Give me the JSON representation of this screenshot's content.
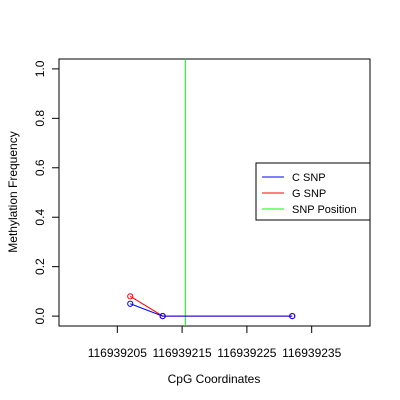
{
  "chart_data": {
    "type": "line",
    "title": "",
    "xlabel": "CpG Coordinates",
    "ylabel": "Methylation Frequency",
    "xlim": [
      116939196,
      116939244
    ],
    "ylim": [
      -0.04,
      1.04
    ],
    "x_ticks": [
      116939205,
      116939215,
      116939225,
      116939235
    ],
    "x_tick_labels": [
      "116939205",
      "116939215",
      "116939225",
      "116939235"
    ],
    "y_ticks": [
      0.0,
      0.2,
      0.4,
      0.6,
      0.8,
      1.0
    ],
    "y_tick_labels": [
      "0.0",
      "0.2",
      "0.4",
      "0.6",
      "0.8",
      "1.0"
    ],
    "grid": false,
    "legend_position": "right",
    "series": [
      {
        "name": "C SNP",
        "color": "#0000ff",
        "x": [
          116939207,
          116939212,
          116939232
        ],
        "y": [
          0.05,
          0.0,
          0.0
        ]
      },
      {
        "name": "G SNP",
        "color": "#ff0000",
        "x": [
          116939207,
          116939212,
          116939232
        ],
        "y": [
          0.08,
          0.0,
          0.0
        ]
      }
    ],
    "vlines": [
      {
        "name": "SNP Position",
        "color": "#00ff00",
        "x": 116939215.5
      }
    ],
    "legend": [
      {
        "label": "C SNP",
        "color": "#0000ff"
      },
      {
        "label": "G SNP",
        "color": "#ff0000"
      },
      {
        "label": "SNP Position",
        "color": "#00ff00"
      }
    ]
  }
}
